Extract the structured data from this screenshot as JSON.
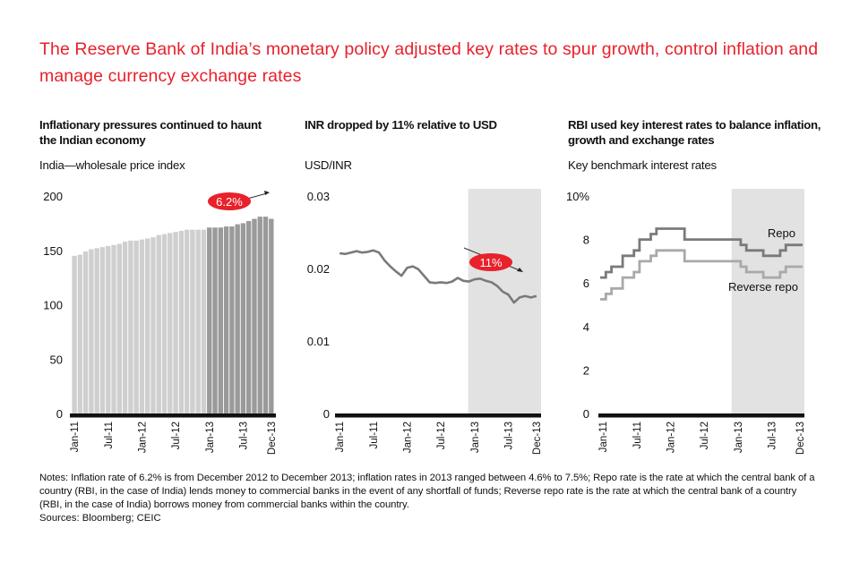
{
  "title": "The Reserve Bank of India’s monetary policy adjusted key rates to spur growth, control inflation and manage currency exchange rates",
  "colors": {
    "accent": "#e8212b",
    "bar_light": "#cfcfcf",
    "bar_dark": "#9a9a9a",
    "line_dark": "#7a7a7a",
    "line_light": "#a9a9a9",
    "shade": "#e2e2e2"
  },
  "notes": "Notes: Inflation rate of 6.2% is from December 2012 to December 2013; inflation rates in 2013 ranged between 4.6% to 7.5%; Repo rate is the rate at which the central bank of a country (RBI, in the case of India) lends money to commercial banks in the event of any shortfall of funds; Reverse repo rate is the rate at which the central bank of a country (RBI, in the case of India) borrows money from commercial banks within the country.",
  "source": "Sources: Bloomberg; CEIC",
  "chart_data": [
    {
      "type": "bar",
      "title": "Inflationary pressures continued to haunt the Indian economy",
      "subtitle": "India—wholesale price index",
      "x_ticks": [
        "Jan-11",
        "Jul-11",
        "Jan-12",
        "Jul-12",
        "Jan-13",
        "Jul-13",
        "Dec-13"
      ],
      "y_ticks": [
        "0",
        "50",
        "100",
        "150",
        "200"
      ],
      "ylim": [
        0,
        200
      ],
      "categories": [
        "Jan-11",
        "Feb-11",
        "Mar-11",
        "Apr-11",
        "May-11",
        "Jun-11",
        "Jul-11",
        "Aug-11",
        "Sep-11",
        "Oct-11",
        "Nov-11",
        "Dec-11",
        "Jan-12",
        "Feb-12",
        "Mar-12",
        "Apr-12",
        "May-12",
        "Jun-12",
        "Jul-12",
        "Aug-12",
        "Sep-12",
        "Oct-12",
        "Nov-12",
        "Dec-12",
        "Jan-13",
        "Feb-13",
        "Mar-13",
        "Apr-13",
        "May-13",
        "Jun-13",
        "Jul-13",
        "Aug-13",
        "Sep-13",
        "Oct-13",
        "Nov-13",
        "Dec-13"
      ],
      "values": [
        145,
        146,
        149,
        151,
        152,
        153,
        154,
        155,
        156,
        158,
        159,
        159,
        160,
        161,
        162,
        164,
        165,
        166,
        167,
        168,
        169,
        169,
        169,
        169,
        171,
        171,
        171,
        172,
        172,
        174,
        175,
        177,
        179,
        181,
        181,
        179
      ],
      "highlight_from": "Jan-13",
      "annotation": "6.2%"
    },
    {
      "type": "line",
      "title": "INR dropped by 11% relative to USD",
      "subtitle": "USD/INR",
      "x_ticks": [
        "Jan-11",
        "Jul-11",
        "Jan-12",
        "Jul-12",
        "Jan-13",
        "Jul-13",
        "Dec-13"
      ],
      "y_ticks": [
        "0",
        "0.01",
        "0.02",
        "0.03"
      ],
      "ylim": [
        0,
        0.03
      ],
      "shaded_from": "Jan-13",
      "annotation": "11%",
      "series": [
        {
          "name": "USD/INR",
          "x": [
            0,
            1,
            2,
            3,
            4,
            5,
            6,
            7,
            8,
            9,
            10,
            11,
            12,
            13,
            14,
            15,
            16,
            17,
            18,
            19,
            20,
            21,
            22,
            23,
            24,
            25,
            26,
            27,
            28,
            29,
            30,
            31,
            32,
            33,
            34,
            35
          ],
          "values": [
            0.0221,
            0.022,
            0.0222,
            0.0224,
            0.0222,
            0.0223,
            0.0225,
            0.0222,
            0.0211,
            0.0203,
            0.0196,
            0.019,
            0.0201,
            0.0203,
            0.0199,
            0.019,
            0.0181,
            0.018,
            0.0181,
            0.018,
            0.0182,
            0.0187,
            0.0183,
            0.0182,
            0.0185,
            0.0186,
            0.0183,
            0.0181,
            0.0176,
            0.0168,
            0.0164,
            0.0153,
            0.016,
            0.0162,
            0.016,
            0.0162
          ]
        }
      ]
    },
    {
      "type": "line",
      "title": "RBI used key interest rates to balance inflation, growth and exchange rates",
      "subtitle": "Key benchmark interest rates",
      "x_ticks": [
        "Jan-11",
        "Jul-11",
        "Jan-12",
        "Jul-12",
        "Jan-13",
        "Jul-13",
        "Dec-13"
      ],
      "y_ticks": [
        "0",
        "2",
        "4",
        "6",
        "8",
        "10%"
      ],
      "ylim": [
        0,
        10
      ],
      "shaded_from": "Jan-13",
      "series": [
        {
          "name": "Repo",
          "step": true,
          "x": [
            0,
            1,
            2,
            3,
            4,
            5,
            6,
            7,
            8,
            9,
            10,
            11,
            12,
            13,
            14,
            15,
            16,
            17,
            18,
            19,
            20,
            21,
            22,
            23,
            24,
            25,
            26,
            27,
            28,
            29,
            30,
            31,
            32,
            33,
            34,
            35
          ],
          "values": [
            6.25,
            6.5,
            6.75,
            6.75,
            7.25,
            7.25,
            7.5,
            8.0,
            8.0,
            8.25,
            8.5,
            8.5,
            8.5,
            8.5,
            8.5,
            8.0,
            8.0,
            8.0,
            8.0,
            8.0,
            8.0,
            8.0,
            8.0,
            8.0,
            8.0,
            7.75,
            7.5,
            7.5,
            7.5,
            7.25,
            7.25,
            7.25,
            7.5,
            7.75,
            7.75,
            7.75
          ]
        },
        {
          "name": "Reverse repo",
          "step": true,
          "x": [
            0,
            1,
            2,
            3,
            4,
            5,
            6,
            7,
            8,
            9,
            10,
            11,
            12,
            13,
            14,
            15,
            16,
            17,
            18,
            19,
            20,
            21,
            22,
            23,
            24,
            25,
            26,
            27,
            28,
            29,
            30,
            31,
            32,
            33,
            34,
            35
          ],
          "values": [
            5.25,
            5.5,
            5.75,
            5.75,
            6.25,
            6.25,
            6.5,
            7.0,
            7.0,
            7.25,
            7.5,
            7.5,
            7.5,
            7.5,
            7.5,
            7.0,
            7.0,
            7.0,
            7.0,
            7.0,
            7.0,
            7.0,
            7.0,
            7.0,
            7.0,
            6.75,
            6.5,
            6.5,
            6.5,
            6.25,
            6.25,
            6.25,
            6.5,
            6.75,
            6.75,
            6.75
          ]
        }
      ]
    }
  ]
}
